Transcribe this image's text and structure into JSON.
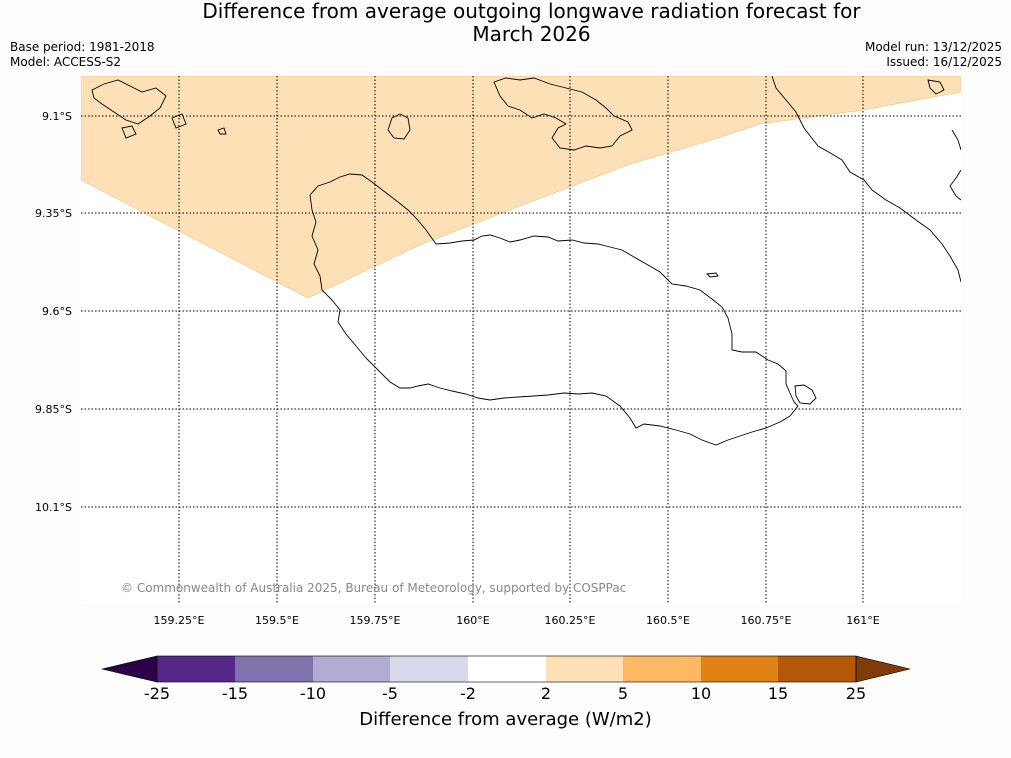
{
  "header": {
    "title_line1": "Difference from average outgoing longwave radiation forecast for",
    "title_line2": "March 2026",
    "base_period": "Base period: 1981-2018",
    "model": "Model: ACCESS-S2",
    "model_run": "Model run: 13/12/2025",
    "issued": "Issued: 16/12/2025"
  },
  "map": {
    "latitude_labels": [
      "9.1°S",
      "9.35°S",
      "9.6°S",
      "9.85°S",
      "10.1°S"
    ],
    "longitude_labels": [
      "159.25°E",
      "159.5°E",
      "159.75°E",
      "160°E",
      "160.25°E",
      "160.5°E",
      "160.75°E",
      "161°E"
    ],
    "copyright": "© Commonwealth of Australia 2025, Bureau of Meteorology, supported by COSPPac",
    "shaded_category": "2 to 5 W/m2",
    "colors": {
      "land_outline": "#000000",
      "shade_2_5": "#fde0b6",
      "grid": "#000000"
    }
  },
  "colorbar": {
    "ticks": [
      "-25",
      "-15",
      "-10",
      "-5",
      "-2",
      "2",
      "5",
      "10",
      "15",
      "25"
    ],
    "colors": [
      "#2d004b",
      "#542788",
      "#8073ac",
      "#b2abd2",
      "#d8daeb",
      "#ffffff",
      "#fee0b6",
      "#fdb863",
      "#e08214",
      "#b35806",
      "#7f3b08"
    ],
    "title": "Difference from average (W/m2)"
  }
}
